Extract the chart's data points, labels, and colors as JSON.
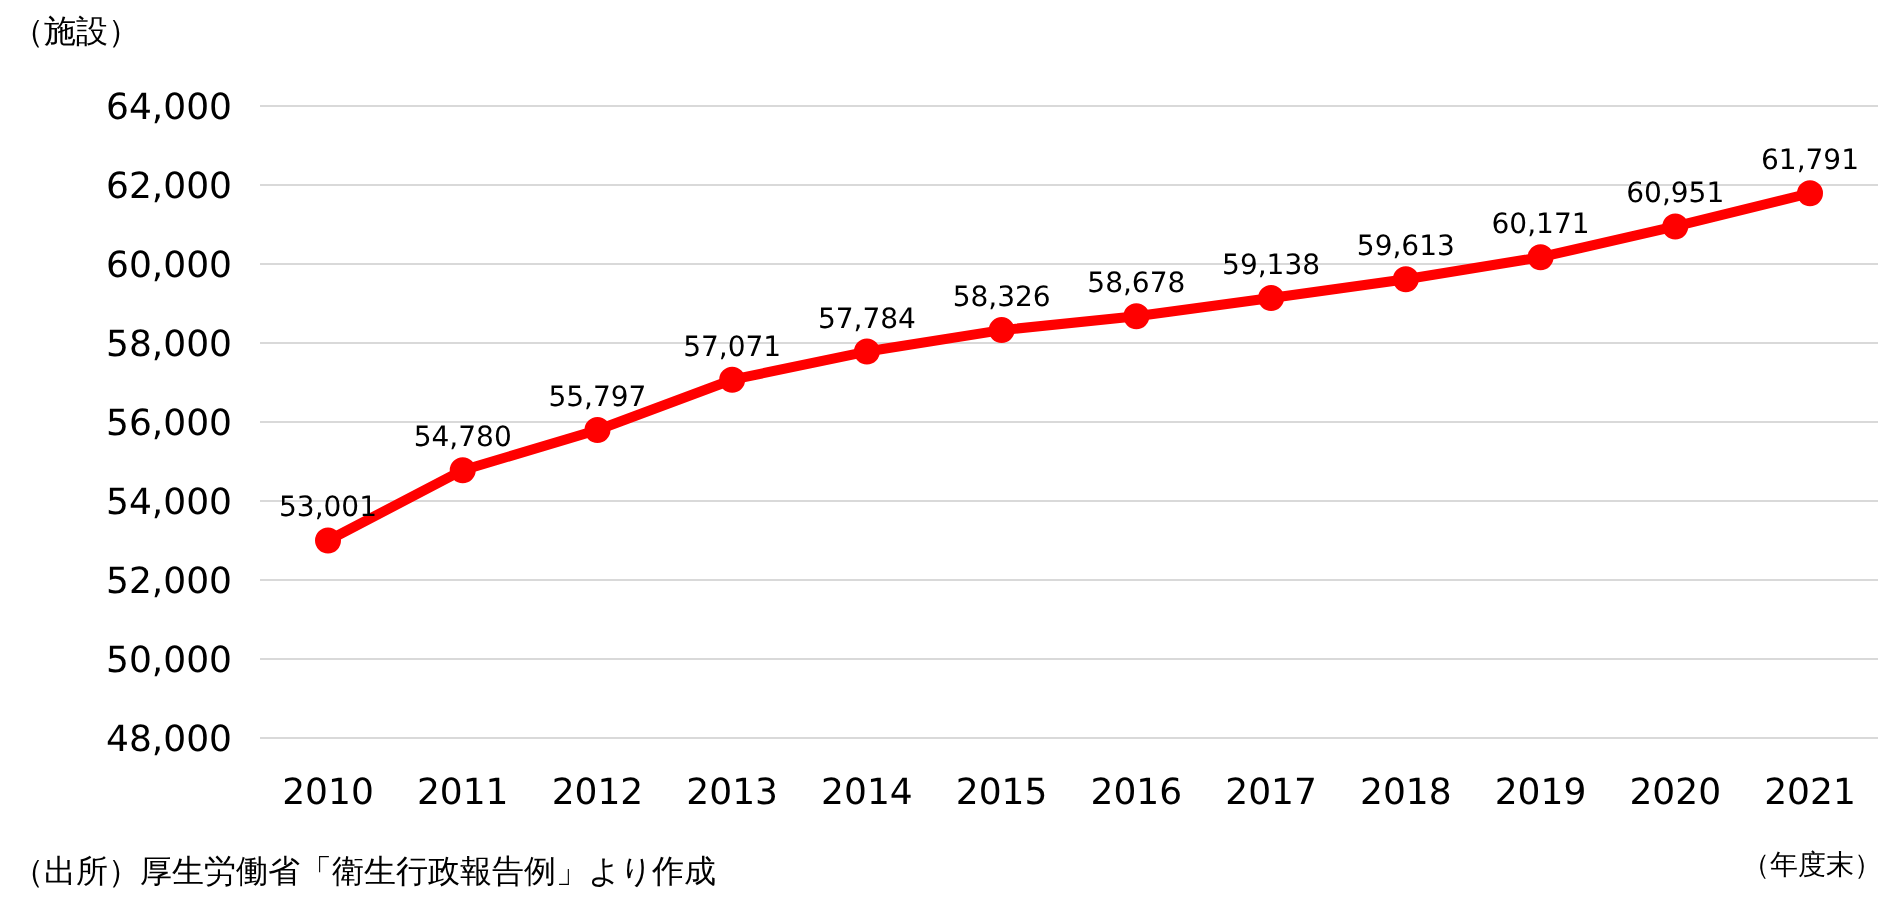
{
  "chart_data": {
    "type": "line",
    "ylabel": "（施設）",
    "xlabel": "（年度末）",
    "categories": [
      "2010",
      "2011",
      "2012",
      "2013",
      "2014",
      "2015",
      "2016",
      "2017",
      "2018",
      "2019",
      "2020",
      "2021"
    ],
    "series": [
      {
        "color": "#ff0000",
        "values": [
          53001,
          54780,
          55797,
          57071,
          57784,
          58326,
          58678,
          59138,
          59613,
          60171,
          60951,
          61791
        ],
        "value_labels": [
          "53,001",
          "54,780",
          "55,797",
          "57,071",
          "57,784",
          "58,326",
          "58,678",
          "59,138",
          "59,613",
          "60,171",
          "60,951",
          "61,791"
        ]
      }
    ],
    "ylim": [
      48000,
      64000
    ],
    "yticks": [
      {
        "value": 48000,
        "label": "48,000"
      },
      {
        "value": 50000,
        "label": "50,000"
      },
      {
        "value": 52000,
        "label": "52,000"
      },
      {
        "value": 54000,
        "label": "54,000"
      },
      {
        "value": 56000,
        "label": "56,000"
      },
      {
        "value": 58000,
        "label": "58,000"
      },
      {
        "value": 60000,
        "label": "60,000"
      },
      {
        "value": 62000,
        "label": "62,000"
      },
      {
        "value": 64000,
        "label": "64,000"
      }
    ],
    "grid": "y",
    "marker": "circle",
    "line_style": "solid",
    "annotations": [
      "（出所）厚生労働省「衛生行政報告例」より作成"
    ]
  }
}
